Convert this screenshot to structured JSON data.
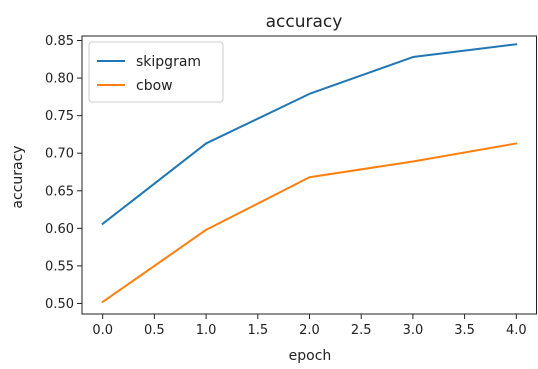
{
  "chart_data": {
    "type": "line",
    "title": "accuracy",
    "xlabel": "epoch",
    "ylabel": "accuracy",
    "x": [
      0,
      1,
      2,
      3,
      4
    ],
    "xlim": [
      -0.2,
      4.2
    ],
    "ylim": [
      0.486,
      0.856
    ],
    "xticks": [
      "0.0",
      "0.5",
      "1.0",
      "1.5",
      "2.0",
      "2.5",
      "3.0",
      "3.5",
      "4.0"
    ],
    "yticks": [
      "0.50",
      "0.55",
      "0.60",
      "0.65",
      "0.70",
      "0.75",
      "0.80",
      "0.85"
    ],
    "grid": false,
    "legend_position": "top-left",
    "series": [
      {
        "name": "skipgram",
        "color": "#1f77b4",
        "values": [
          0.606,
          0.713,
          0.779,
          0.828,
          0.845
        ]
      },
      {
        "name": "cbow",
        "color": "#ff7f0e",
        "values": [
          0.502,
          0.598,
          0.668,
          0.689,
          0.713
        ]
      }
    ]
  }
}
